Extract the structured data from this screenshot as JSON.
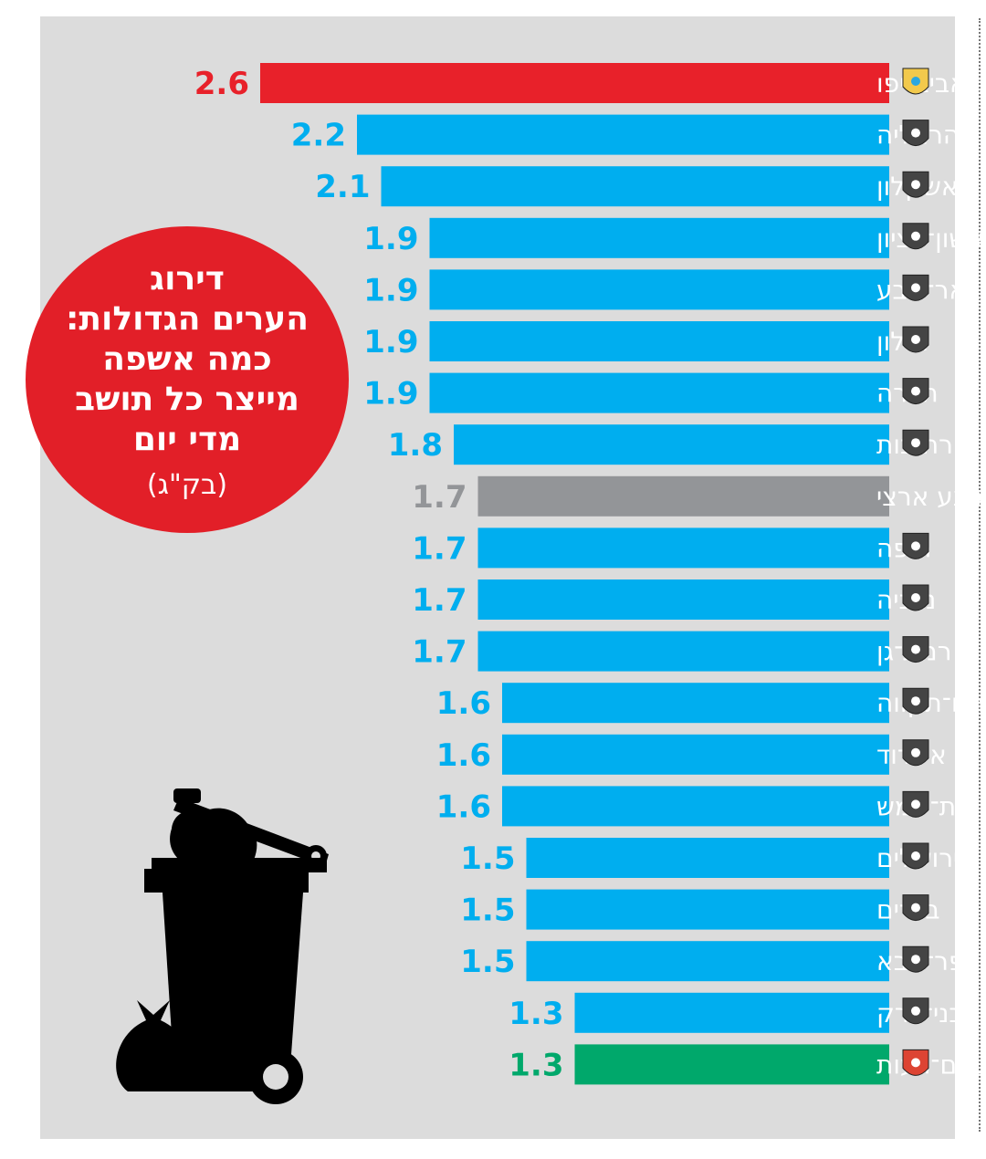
{
  "headline": {
    "lines": [
      "דירוג",
      "הערים הגדולות:",
      "כמה אשפה",
      "מייצר כל תושב",
      "מדי יום"
    ],
    "unit": "(בק\"ג)"
  },
  "colors": {
    "highlight": "#e8212a",
    "default": "#00aeef",
    "average": "#939598",
    "lowest": "#00a86b"
  },
  "icons": [
    "trash-bin-icon",
    "garbage-bag-icon",
    "city-emblem-icon"
  ],
  "chart_data": {
    "type": "bar",
    "orientation": "horizontal",
    "title": "דירוג הערים הגדולות: כמה אשפה מייצר כל תושב מדי יום",
    "unit": "(בק\"ג)",
    "categories": [
      "תל אביב־יפו",
      "הרצליה",
      "אשקלון",
      "ראשון־לציון",
      "באר־שבע",
      "חולון",
      "חדרה",
      "רחובות",
      "ממוצע ארצי",
      "חיפה",
      "נתניה",
      "רמת־גן",
      "פתח־תקווה",
      "אשדוד",
      "בית־שמש",
      "ירושלים",
      "בת־ים",
      "כפר־סבא",
      "בני־ברק",
      "מודיעין־מכבים־רעות"
    ],
    "values": [
      2.6,
      2.2,
      2.1,
      1.9,
      1.9,
      1.9,
      1.9,
      1.8,
      1.7,
      1.7,
      1.7,
      1.7,
      1.6,
      1.6,
      1.6,
      1.5,
      1.5,
      1.5,
      1.3,
      1.3
    ],
    "value_labels": [
      "2.6",
      "2.2",
      "2.1",
      "1.9",
      "1.9",
      "1.9",
      "1.9",
      "1.8",
      "1.7",
      "1.7",
      "1.7",
      "1.7",
      "1.6",
      "1.6",
      "1.6",
      "1.5",
      "1.5",
      "1.5",
      "1.3",
      "1.3"
    ],
    "bar_colors": [
      "#e8212a",
      "#00aeef",
      "#00aeef",
      "#00aeef",
      "#00aeef",
      "#00aeef",
      "#00aeef",
      "#00aeef",
      "#939598",
      "#00aeef",
      "#00aeef",
      "#00aeef",
      "#00aeef",
      "#00aeef",
      "#00aeef",
      "#00aeef",
      "#00aeef",
      "#00aeef",
      "#00aeef",
      "#00a86b"
    ],
    "grid": false,
    "legend": "none"
  }
}
